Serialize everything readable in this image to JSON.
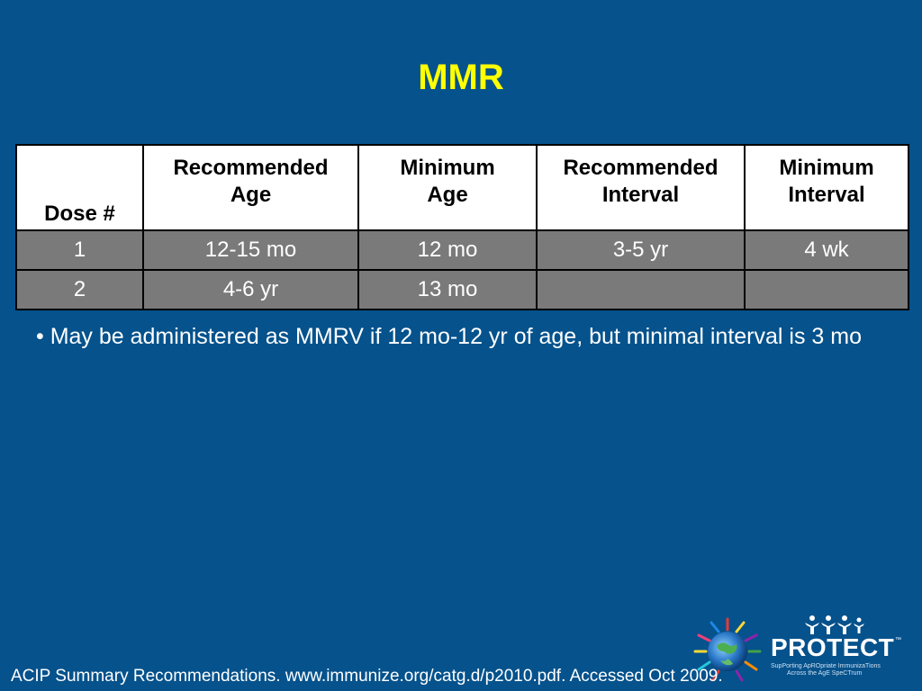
{
  "slide": {
    "title": "MMR",
    "table": {
      "headers": [
        "Dose #",
        "Recommended Age",
        "Minimum Age",
        "Recommended Interval",
        "Minimum Interval"
      ],
      "header_lines": [
        [
          "Dose #"
        ],
        [
          "Recommended",
          "Age"
        ],
        [
          "Minimum",
          "Age"
        ],
        [
          "Recommended",
          "Interval"
        ],
        [
          "Minimum",
          "Interval"
        ]
      ],
      "rows": [
        [
          "1",
          "12-15 mo",
          "12 mo",
          "3-5 yr",
          "4 wk"
        ],
        [
          "2",
          "4-6 yr",
          "13 mo",
          "",
          ""
        ]
      ]
    },
    "bullets": [
      "• May be administered as MMRV if 12 mo-12 yr of age, but minimal interval is 3 mo"
    ],
    "footer": "ACIP Summary Recommendations. www.immunize.org/catg.d/p2010.pdf. Accessed Oct 2009."
  },
  "logo": {
    "name": "PROTECT",
    "tm": "™",
    "tagline_1": "SupPorting ApROpriate ImmunizaTions",
    "tagline_2": "Across the AgE SpeCTrum"
  },
  "colors": {
    "background": "#05528c",
    "title": "#ffff00",
    "header_bg": "#ffffff",
    "row_bg": "#7a7a7a",
    "text": "#ffffff"
  }
}
